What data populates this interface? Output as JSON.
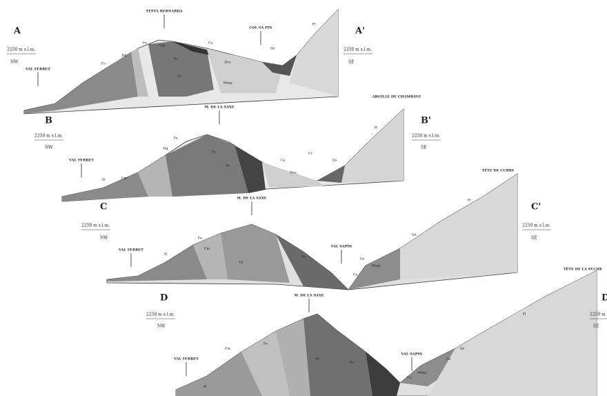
{
  "sections": [
    {
      "left_label": "A",
      "right_label": "A'",
      "left_elevation": "2250 m s.l.m.",
      "left_direction": "NW",
      "right_elevation": "2250 m s.l.m.",
      "right_direction": "SE",
      "places": [
        "TESTA BERNARDA",
        "COL SA PIN",
        "VAL FERRET"
      ],
      "units": [
        "Fe",
        "Cm",
        "Dg",
        "Cc",
        "Gr",
        "Sc",
        "Dcs",
        "Mmp",
        "Ca",
        "Qz",
        "Fl"
      ]
    },
    {
      "left_label": "B",
      "right_label": "B'",
      "left_elevation": "2250 m s.l.m.",
      "left_direction": "NW",
      "right_elevation": "2250 m s.l.m.",
      "right_direction": "SE",
      "places": [
        "M. DE LA SAXE",
        "ARGILLE DE CHAMBAVE",
        "VAL FERRET"
      ],
      "units": [
        "Al",
        "Cm",
        "Dg",
        "Fe",
        "Gr",
        "Sc",
        "Ca",
        "Cc",
        "Dcs",
        "Gs",
        "Fl"
      ]
    },
    {
      "left_label": "C",
      "right_label": "C'",
      "left_elevation": "2250 m s.l.m.",
      "left_direction": "NW",
      "right_elevation": "2250 m s.l.m.",
      "right_direction": "SE",
      "places": [
        "M. DE LA SAXE",
        "TÊTE DE CURRY",
        "VAL FERRET",
        "VAL SAPIN"
      ],
      "units": [
        "Al",
        "Fe",
        "Cm",
        "Gr",
        "Sc",
        "Ca",
        "Gs",
        "Mmp",
        "Qz",
        "Fl"
      ]
    },
    {
      "left_label": "D",
      "right_label": "D'",
      "left_elevation": "2250 m s.l.m.",
      "left_direction": "NW",
      "right_elevation": "2250 m s.l.m.",
      "right_direction": "SE",
      "places": [
        "M. DE LA SAXE",
        "TÊTE DE LA SUCHE",
        "VAL FERRET",
        "VAL SAPIN"
      ],
      "units": [
        "Al",
        "Cm",
        "Fe",
        "Gr",
        "Sc",
        "Ca",
        "Mmp",
        "Gs",
        "Qz",
        "Fl"
      ]
    }
  ]
}
